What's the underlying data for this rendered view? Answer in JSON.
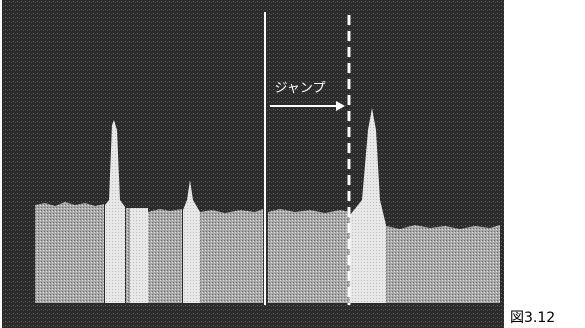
{
  "annotation": "ジャンプ",
  "caption": "図3.12"
}
